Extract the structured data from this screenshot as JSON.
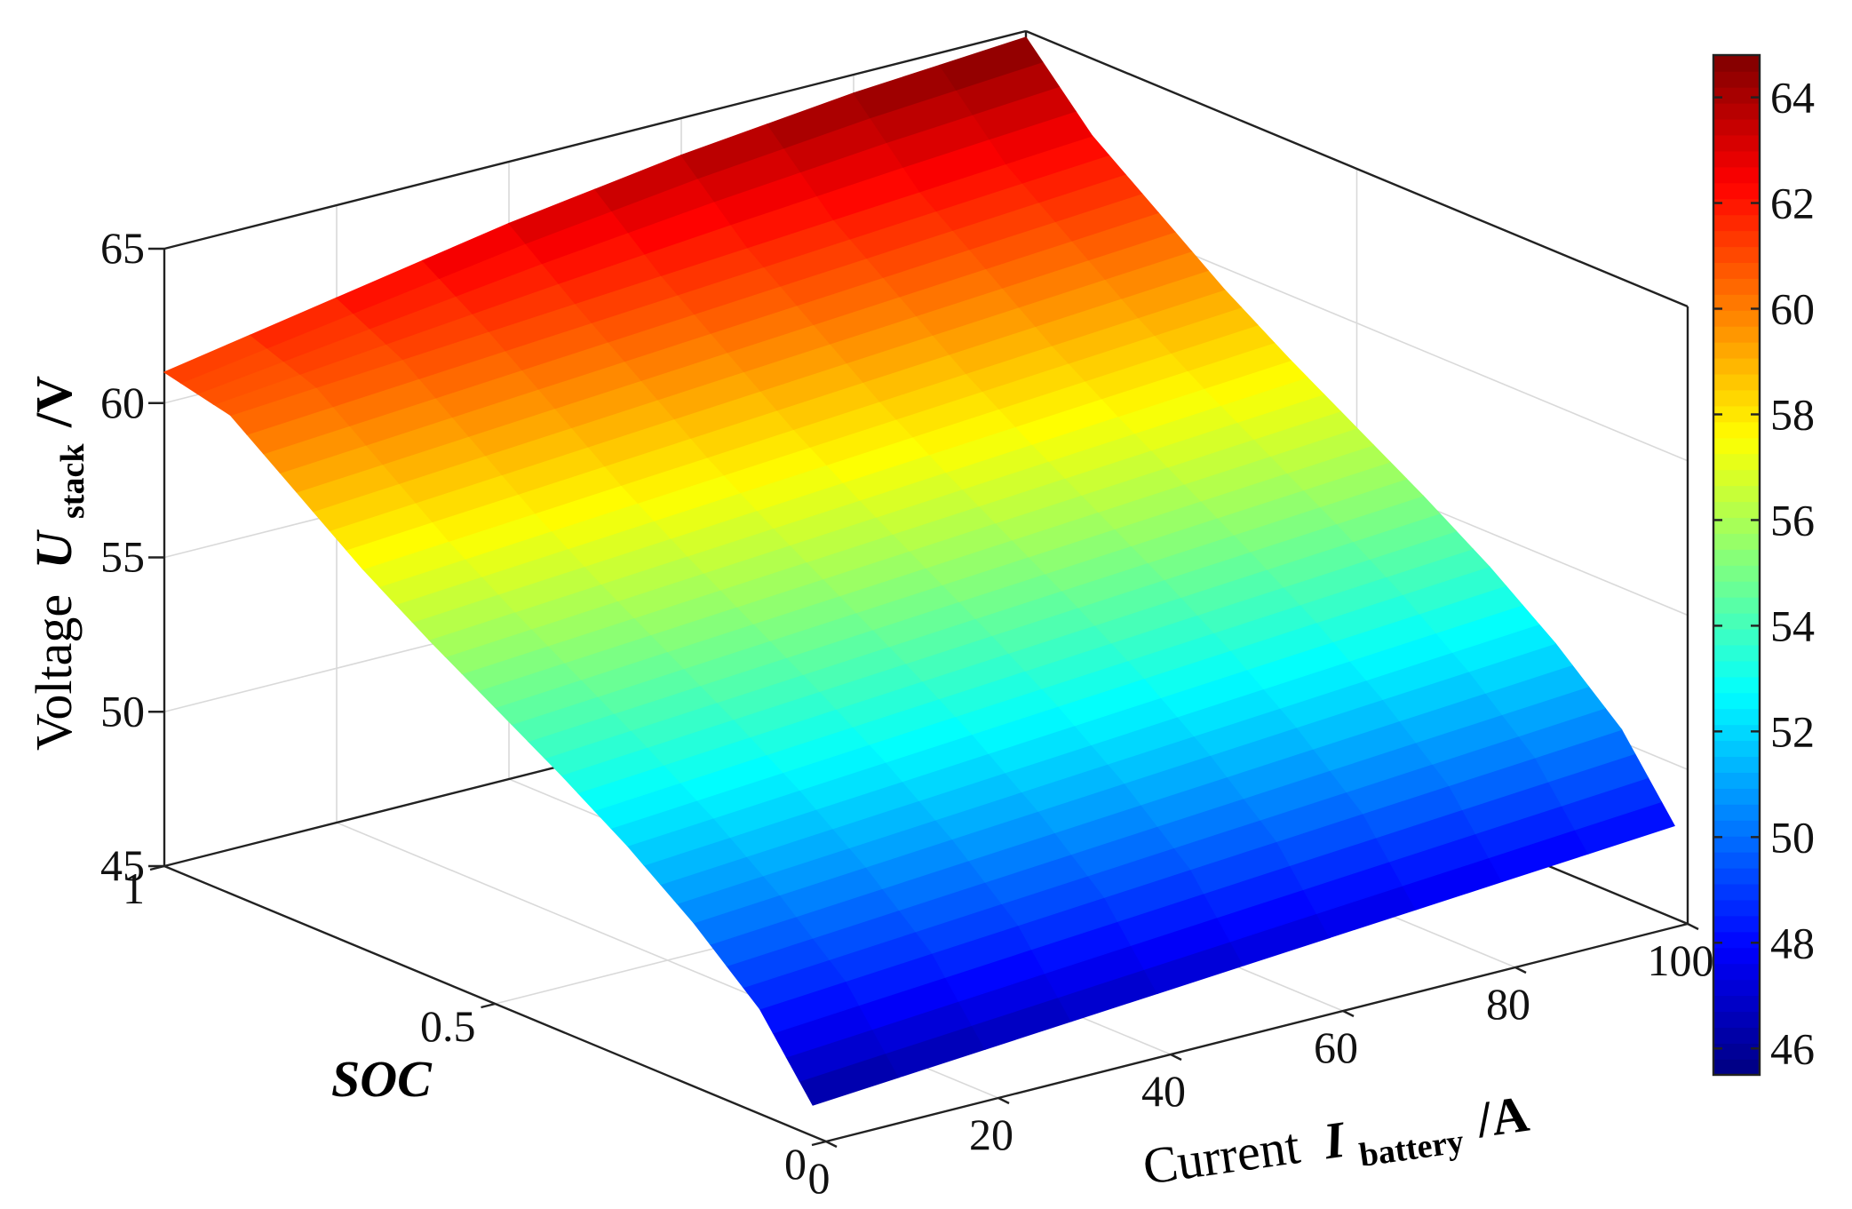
{
  "chart_data": {
    "type": "surface",
    "colormap": "jet",
    "x_axis": {
      "label": "Current",
      "symbol": "I",
      "subscript": "battery",
      "unit": "/A",
      "ticks": [
        "0",
        "20",
        "40",
        "60",
        "80",
        "100"
      ],
      "range": [
        0,
        100
      ]
    },
    "y_axis": {
      "label": "SOC",
      "ticks": [
        "0",
        "0.5",
        "1"
      ],
      "range": [
        0,
        1
      ]
    },
    "z_axis": {
      "label": "Voltage",
      "symbol": "U",
      "subscript": "stack",
      "unit": "/V",
      "ticks": [
        "45",
        "50",
        "55",
        "60",
        "65"
      ],
      "range": [
        45,
        65
      ]
    },
    "colorbar": {
      "ticks": [
        "46",
        "48",
        "50",
        "52",
        "54",
        "56",
        "58",
        "60",
        "62",
        "64"
      ],
      "range": [
        45.5,
        64.8
      ]
    },
    "surface": {
      "current": [
        0,
        10,
        20,
        30,
        40,
        50,
        60,
        70,
        80,
        90,
        100
      ],
      "soc": [
        0.02,
        0.1,
        0.2,
        0.3,
        0.4,
        0.5,
        0.6,
        0.7,
        0.8,
        0.9,
        1.0
      ],
      "voltage": [
        [
          46.0,
          46.2,
          46.4,
          46.6,
          46.8,
          47.0,
          47.2,
          47.4,
          47.6,
          47.8,
          48.0
        ],
        [
          48.4,
          48.6,
          48.8,
          49.0,
          49.2,
          49.4,
          49.6,
          49.8,
          50.0,
          50.2,
          50.4
        ],
        [
          50.3,
          50.5,
          50.7,
          50.9,
          51.1,
          51.3,
          51.5,
          51.7,
          51.9,
          52.1,
          52.3
        ],
        [
          51.9,
          52.1,
          52.3,
          52.5,
          52.7,
          52.9,
          53.1,
          53.3,
          53.5,
          53.7,
          53.9
        ],
        [
          53.3,
          53.5,
          53.7,
          53.9,
          54.1,
          54.3,
          54.5,
          54.7,
          54.9,
          55.1,
          55.3
        ],
        [
          54.6,
          54.8,
          55.0,
          55.2,
          55.4,
          55.6,
          55.8,
          56.0,
          56.2,
          56.4,
          56.6
        ],
        [
          55.9,
          56.1,
          56.3,
          56.5,
          56.7,
          56.9,
          57.1,
          57.3,
          57.5,
          57.7,
          57.9
        ],
        [
          57.3,
          57.5,
          57.7,
          57.9,
          58.1,
          58.3,
          58.5,
          58.7,
          58.9,
          59.1,
          59.3
        ],
        [
          58.9,
          59.1,
          59.3,
          59.5,
          59.7,
          59.9,
          60.1,
          60.3,
          60.5,
          60.7,
          60.9
        ],
        [
          60.5,
          60.7,
          60.9,
          61.1,
          61.3,
          61.5,
          61.7,
          61.9,
          62.1,
          62.3,
          62.5
        ],
        [
          61.0,
          61.5,
          62.0,
          62.5,
          63.0,
          63.4,
          63.8,
          64.1,
          64.4,
          64.6,
          64.8
        ]
      ]
    }
  }
}
